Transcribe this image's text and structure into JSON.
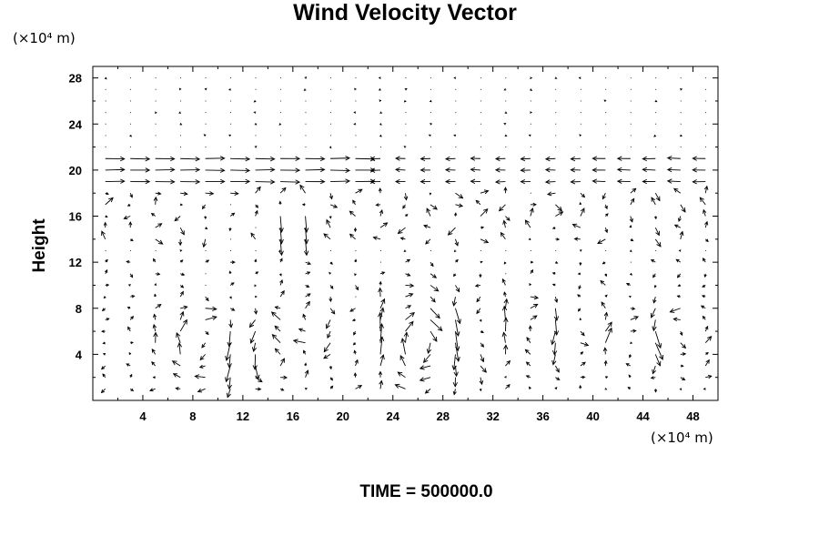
{
  "chart_data": {
    "type": "vector_field",
    "title": "Wind Velocity Vector",
    "ylabel": "Height",
    "xlabel": "",
    "x_unit": "(×10⁴ m)",
    "y_unit": "(×10⁴ m)",
    "xlim": [
      0,
      50
    ],
    "ylim": [
      0,
      29
    ],
    "x_ticks": [
      4,
      8,
      12,
      16,
      20,
      24,
      28,
      32,
      36,
      40,
      44,
      48
    ],
    "y_ticks": [
      4,
      8,
      12,
      16,
      20,
      24,
      28
    ],
    "grid": false,
    "annotation": "TIME = 500000.0",
    "description_of_field": "Weak vectors above ~22; jet-like strong vectors near height 20 (eastward at left, westward at right); convective circulation cells below height 12"
  }
}
